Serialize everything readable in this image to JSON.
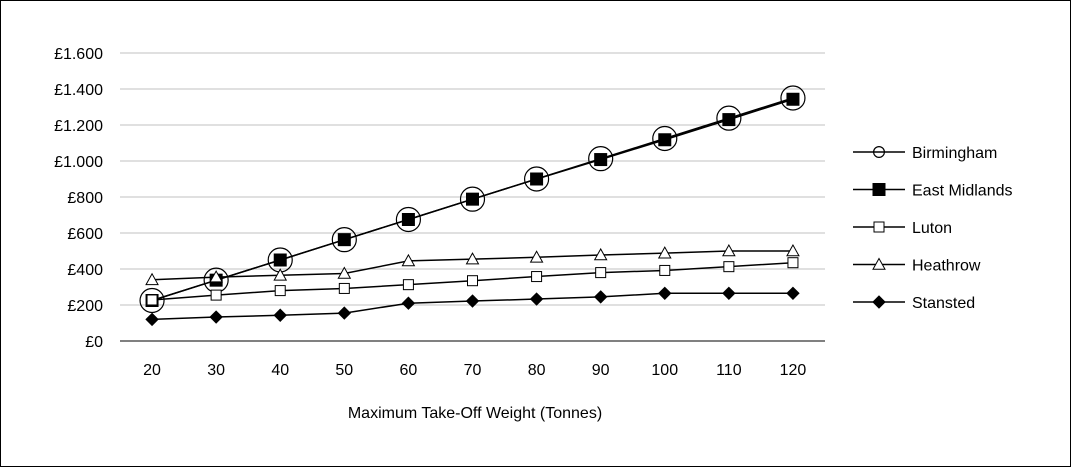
{
  "chart_data": {
    "type": "line",
    "title": "",
    "xlabel": "Maximum Take-Off Weight (Tonnes)",
    "ylabel": "",
    "x": [
      20,
      30,
      40,
      50,
      60,
      70,
      80,
      90,
      100,
      110,
      120
    ],
    "ylim": [
      0,
      1600
    ],
    "y_ticks": [
      0,
      200,
      400,
      600,
      800,
      1000,
      1200,
      1400,
      1600
    ],
    "y_tick_labels": [
      "£0",
      "£200",
      "£400",
      "£600",
      "£800",
      "£1.000",
      "£1.200",
      "£1.400",
      "£1.600"
    ],
    "x_tick_labels": [
      "20",
      "30",
      "40",
      "50",
      "60",
      "70",
      "80",
      "90",
      "100",
      "110",
      "120"
    ],
    "grid": true,
    "legend_position": "right",
    "series": [
      {
        "name": "Birmingham",
        "marker": "open-circle",
        "values": [
          225,
          338,
          450,
          563,
          675,
          788,
          900,
          1013,
          1125,
          1238,
          1350
        ]
      },
      {
        "name": "East Midlands",
        "marker": "filled-square",
        "values": [
          225,
          338,
          450,
          563,
          675,
          788,
          900,
          1008,
          1118,
          1230,
          1343
        ]
      },
      {
        "name": "Luton",
        "marker": "open-square",
        "values": [
          228,
          255,
          280,
          292,
          313,
          335,
          358,
          380,
          392,
          413,
          435
        ]
      },
      {
        "name": "Heathrow",
        "marker": "open-triangle",
        "values": [
          340,
          355,
          365,
          375,
          445,
          455,
          465,
          478,
          488,
          500,
          500
        ]
      },
      {
        "name": "Stansted",
        "marker": "filled-diamond",
        "values": [
          120,
          133,
          143,
          155,
          210,
          222,
          233,
          245,
          265,
          265,
          265
        ]
      }
    ]
  }
}
